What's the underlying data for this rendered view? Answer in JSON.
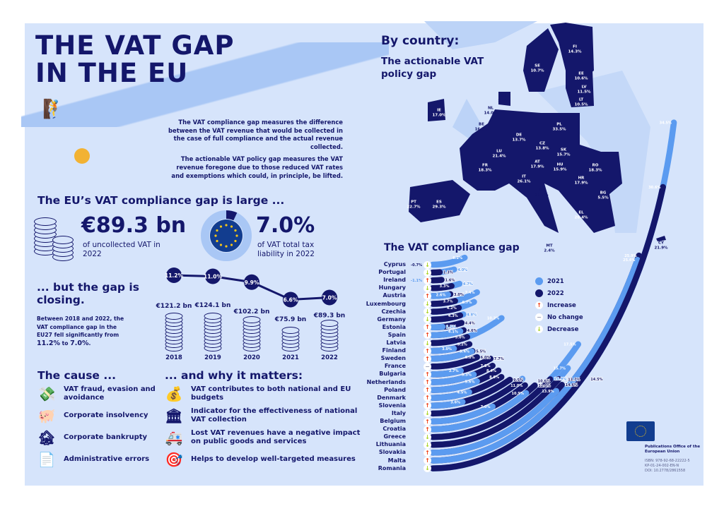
{
  "title": {
    "line1": "THE VAT GAP",
    "line2": "IN THE EU"
  },
  "intro": {
    "p1": "The VAT compliance gap measures the difference between the VAT revenue that would be collected in the case of full compliance and the actual revenue collected.",
    "p2": "The actionable VAT policy gap measures the VAT revenue foregone due to those reduced VAT rates and exemptions which could, in principle, be lifted."
  },
  "large": {
    "heading": "The EU’s VAT compliance gap is large ...",
    "amount": "€89.3 bn",
    "amount_caption": "of uncollected VAT in 2022",
    "percent": "7.0%",
    "percent_caption": "of VAT total tax liability in 2022",
    "percent_value": 7.0
  },
  "closing": {
    "heading": "... but the gap is closing.",
    "text_pre": "Between 2018 and 2022, the VAT compliance gap in the EU27 fell significantly from ",
    "from": "11.2%",
    "to_word": " to ",
    "to": "7.0%",
    "end": "."
  },
  "chart_data": {
    "type": "line",
    "title": "EU27 VAT compliance gap",
    "x": [
      "2018",
      "2019",
      "2020",
      "2021",
      "2022"
    ],
    "values": [
      11.2,
      11.0,
      9.9,
      6.6,
      7.0
    ],
    "value_labels": [
      "11.2%",
      "11.0%",
      "9.9%",
      "6.6%",
      "7.0%"
    ],
    "amounts": [
      121.2,
      124.1,
      102.2,
      75.9,
      89.3
    ],
    "amount_labels": [
      "€121.2 bn",
      "€124.1 bn",
      "€102.2 bn",
      "€75.9 bn",
      "€89.3 bn"
    ]
  },
  "cause": {
    "heading": "The cause ...",
    "items": [
      {
        "icon": "money-warning-icon",
        "label": "VAT fraud, evasion and avoidance"
      },
      {
        "icon": "broken-piggy-bank-icon",
        "label": "Corporate insolvency"
      },
      {
        "icon": "closed-sign-icon",
        "label": "Corporate bankrupty"
      },
      {
        "icon": "document-warning-icon",
        "label": "Administrative errors"
      }
    ]
  },
  "matters": {
    "heading": "... and why it matters:",
    "items": [
      {
        "icon": "money-bag-icon",
        "label": "VAT contributes to both national and EU budgets"
      },
      {
        "icon": "institution-icon",
        "label": "Indicator for the effectiveness of national VAT collection"
      },
      {
        "icon": "ambulance-icon",
        "label": "Lost VAT revenues have a negative impact on public goods and services"
      },
      {
        "icon": "target-icon",
        "label": "Helps to develop well-targeted measures"
      }
    ]
  },
  "country": {
    "heading": "By country:",
    "subheading": "The actionable VAT policy gap"
  },
  "map": {
    "countries": [
      {
        "code": "FI",
        "value": "14.3%"
      },
      {
        "code": "SE",
        "value": "10.7%"
      },
      {
        "code": "EE",
        "value": "10.6%"
      },
      {
        "code": "LV",
        "value": "11.5%"
      },
      {
        "code": "LT",
        "value": "10.5%"
      },
      {
        "code": "DK",
        "value": "2.8%"
      },
      {
        "code": "NL",
        "value": "14.0%"
      },
      {
        "code": "IE",
        "value": "17.0%"
      },
      {
        "code": "BE",
        "value": "16.6%"
      },
      {
        "code": "DE",
        "value": "13.7%"
      },
      {
        "code": "PL",
        "value": "33.5%"
      },
      {
        "code": "CZ",
        "value": "13.8%"
      },
      {
        "code": "SK",
        "value": "15.7%"
      },
      {
        "code": "LU",
        "value": "21.4%"
      },
      {
        "code": "AT",
        "value": "17.9%"
      },
      {
        "code": "HU",
        "value": "15.9%"
      },
      {
        "code": "FR",
        "value": "18.3%"
      },
      {
        "code": "RO",
        "value": "18.3%"
      },
      {
        "code": "HR",
        "value": "17.9%"
      },
      {
        "code": "IT",
        "value": "26.1%"
      },
      {
        "code": "SI",
        "value": "21.1%"
      },
      {
        "code": "BG",
        "value": "5.5%"
      },
      {
        "code": "ES",
        "value": "29.3%"
      },
      {
        "code": "PT",
        "value": "22.7%"
      },
      {
        "code": "EL",
        "value": "28.4%"
      },
      {
        "code": "MT",
        "value": "2.4%"
      },
      {
        "code": "CY",
        "value": "21.9%"
      }
    ]
  },
  "compliance": {
    "heading": "The VAT compliance gap",
    "colors": {
      "y2021": "#5b9bf0",
      "y2022": "#14176b",
      "increase": "#f03c14",
      "nochange": "#9a9db5",
      "decrease": "#a8d21e"
    },
    "legend": {
      "y2021": "2021",
      "y2022": "2022",
      "increase": "Increase",
      "nochange": "No change",
      "decrease": "Decrease"
    },
    "countries": [
      {
        "name": "Cyprus",
        "v2021": 6.2,
        "v2022": -0.7,
        "l2021": "6.2%",
        "l2022": "-0.7%",
        "trend": "decrease"
      },
      {
        "name": "Portugal",
        "v2021": 4.0,
        "v2022": 1.3,
        "l2021": "4.0%",
        "l2022": "1.3%",
        "trend": "decrease"
      },
      {
        "name": "Ireland",
        "v2021": -1.1,
        "v2022": 1.6,
        "l2021": "-1.1%",
        "l2022": "1.6%",
        "trend": "increase"
      },
      {
        "name": "Hungary",
        "v2021": 4.7,
        "v2022": 3.3,
        "l2021": "4.7%",
        "l2022": "3.3%",
        "trend": "decrease"
      },
      {
        "name": "Austria",
        "v2021": 2.6,
        "v2022": 3.0,
        "l2021": "2.6%",
        "l2022": "3.0%",
        "trend": "increase"
      },
      {
        "name": "Luxembourg",
        "v2021": 7.4,
        "v2022": 3.7,
        "l2021": "7.4%",
        "l2022": "3.7%",
        "trend": "decrease"
      },
      {
        "name": "Czechia",
        "v2021": 6.7,
        "v2022": 4.2,
        "l2021": "6.7%",
        "l2022": "4.2%",
        "trend": "decrease"
      },
      {
        "name": "Germany",
        "v2021": 4.8,
        "v2022": 4.3,
        "l2021": "4.8%",
        "l2022": "4.3%",
        "trend": "decrease"
      },
      {
        "name": "Estonia",
        "v2021": 1.5,
        "v2022": 4.4,
        "l2021": "1.5%",
        "l2022": "4.4%",
        "trend": "increase"
      },
      {
        "name": "Spain",
        "v2021": 4.1,
        "v2022": 4.6,
        "l2021": "4.1%",
        "l2022": "4.6%",
        "trend": "increase"
      },
      {
        "name": "Latvia",
        "v2021": 10.2,
        "v2022": 5.0,
        "l2021": "10.2%",
        "l2022": "5.0%",
        "trend": "decrease"
      },
      {
        "name": "Finland",
        "v2021": 3.0,
        "v2022": 5.2,
        "l2021": "3.0%",
        "l2022": "5.2%",
        "trend": "increase"
      },
      {
        "name": "Sweden",
        "v2021": 5.4,
        "v2022": 5.5,
        "l2021": "5.4%",
        "l2022": "5.5%",
        "trend": "increase"
      },
      {
        "name": "France",
        "v2021": 6.0,
        "v2022": 6.0,
        "l2021": "6.0%",
        "l2022": "6.0%",
        "trend": "nochange"
      },
      {
        "name": "Bulgaria",
        "v2021": 3.7,
        "v2022": 7.7,
        "l2021": "3.7%",
        "l2022": "7.7%",
        "trend": "increase"
      },
      {
        "name": "Netherlands",
        "v2021": 5.3,
        "v2022": 7.8,
        "l2021": "5.3%",
        "l2022": "7.8%",
        "trend": "increase"
      },
      {
        "name": "Poland",
        "v2021": 5.6,
        "v2022": 8.4,
        "l2021": "5.6%",
        "l2022": "8.4%",
        "trend": "increase"
      },
      {
        "name": "Denmark",
        "v2021": 4.5,
        "v2022": 8.6,
        "l2021": "4.5%",
        "l2022": "8.6%",
        "trend": "increase"
      },
      {
        "name": "Slovenia",
        "v2021": 3.6,
        "v2022": 9.5,
        "l2021": "3.6%",
        "l2022": "9.5%",
        "trend": "increase"
      },
      {
        "name": "Italy",
        "v2021": 10.9,
        "v2022": 10.6,
        "l2021": "10.9%",
        "l2022": "10.6%",
        "trend": "decrease"
      },
      {
        "name": "Belgium",
        "v2021": 7.0,
        "v2022": 11.0,
        "l2021": "7.0%",
        "l2022": "11.0%",
        "trend": "increase"
      },
      {
        "name": "Croatia",
        "v2021": 10.9,
        "v2022": 12.0,
        "l2021": "10.9%",
        "l2022": "12.0%",
        "trend": "increase"
      },
      {
        "name": "Greece",
        "v2021": 17.5,
        "v2022": 13.7,
        "l2021": "17.5%",
        "l2022": "13.7%",
        "trend": "decrease"
      },
      {
        "name": "Lithuania",
        "v2021": 15.7,
        "v2022": 14.5,
        "l2021": "15.7%",
        "l2022": "14.5%",
        "trend": "decrease"
      },
      {
        "name": "Slovakia",
        "v2021": 13.9,
        "v2022": 14.6,
        "l2021": "13.9%",
        "l2022": "14.6%",
        "trend": "increase"
      },
      {
        "name": "Malta",
        "v2021": 25.6,
        "v2022": 25.9,
        "l2021": "25.6%",
        "l2022": "25.9%",
        "trend": "increase"
      },
      {
        "name": "Romania",
        "v2021": 34.5,
        "v2022": 30.6,
        "l2021": "34.5%",
        "l2022": "30.6%",
        "trend": "decrease"
      }
    ]
  },
  "footer": {
    "publisher": "Publications Office of the European Union",
    "isbn": "ISBN: 978-92-68-22222-5",
    "kp": "KP-01-24-002-EN-N",
    "doi": "DOI: 10.2778/2861558"
  }
}
